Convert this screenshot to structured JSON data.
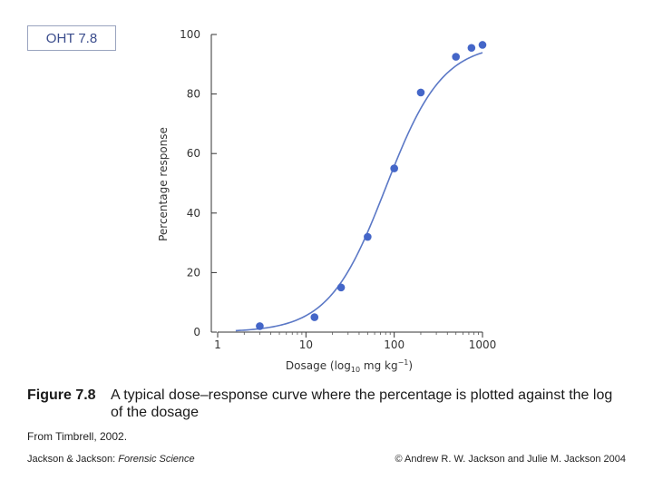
{
  "badge": "OHT 7.8",
  "chart_data": {
    "type": "scatter",
    "x_scale": "log",
    "xlim": [
      1,
      1000
    ],
    "ylim": [
      0,
      100
    ],
    "xticks": [
      "1",
      "10",
      "100",
      "1000"
    ],
    "yticks": [
      "0",
      "20",
      "40",
      "60",
      "80",
      "100"
    ],
    "xlabel": "Dosage (log10 mg kg−1)",
    "ylabel": "Percentage response",
    "grid": false,
    "point_color": "#4466c8",
    "curve_color": "#5b78c6",
    "points": [
      {
        "x": 3,
        "y": 2
      },
      {
        "x": 12.5,
        "y": 5
      },
      {
        "x": 25,
        "y": 15
      },
      {
        "x": 50,
        "y": 32
      },
      {
        "x": 100,
        "y": 55
      },
      {
        "x": 200,
        "y": 80.5
      },
      {
        "x": 500,
        "y": 92.5
      },
      {
        "x": 750,
        "y": 95.5
      },
      {
        "x": 1000,
        "y": 96.5
      }
    ],
    "fitted_curve": {
      "model": "logistic",
      "ec50": 80,
      "slope": 1.35,
      "max": 97
    }
  },
  "caption": {
    "label": "Figure 7.8",
    "text": "A typical dose–response curve where the percentage is plotted against the log of the dosage"
  },
  "source": "From Timbrell, 2002.",
  "footer": {
    "authors": "Jackson & Jackson: ",
    "book": "Forensic Science",
    "copyright": "© Andrew R. W. Jackson and Julie M. Jackson 2004"
  }
}
